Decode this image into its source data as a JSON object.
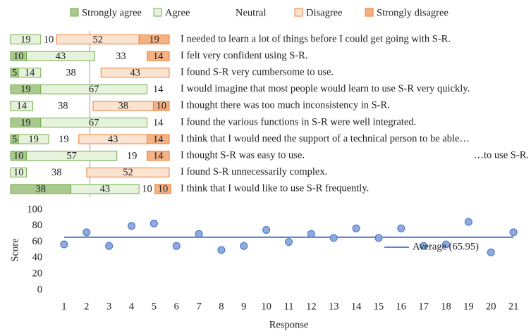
{
  "chart_data": [
    {
      "type": "bar",
      "stacked": true,
      "orientation": "horizontal",
      "xlim": [
        0,
        100
      ],
      "categories": [
        "I needed to learn a lot of things before I could get going with S-R.",
        "I felt very confident using S-R.",
        "I found S-R very cumbersome to use.",
        "I would imagine that most people would learn to use S-R very quickly.",
        "I thought there was too much inconsistency in S-R.",
        "I found the various functions in S-R were well integrated.",
        "I think that I would need the support of a technical person to be able…",
        "I thought S-R was easy to use.",
        "I found S-R unnecessarily complex.",
        "I think that I would like to use S-R frequently."
      ],
      "annotations": [
        "…to use S-R."
      ],
      "series": [
        {
          "name": "Strongly agree",
          "color": "#a9c98f",
          "stroke": "#70ad47",
          "values": [
            null,
            10,
            5,
            19,
            null,
            19,
            5,
            10,
            null,
            38
          ]
        },
        {
          "name": "Agree",
          "color": "#e6f2dc",
          "stroke": "#70ad47",
          "values": [
            19,
            43,
            14,
            67,
            14,
            67,
            19,
            57,
            10,
            43
          ]
        },
        {
          "name": "Neutral",
          "color": "none",
          "stroke": "none",
          "values": [
            10,
            33,
            38,
            14,
            38,
            14,
            19,
            19,
            38,
            10
          ]
        },
        {
          "name": "Disagree",
          "color": "#fbe3d2",
          "stroke": "#ed7d31",
          "values": [
            52,
            null,
            43,
            null,
            38,
            null,
            43,
            null,
            52,
            null
          ]
        },
        {
          "name": "Strongly disagree",
          "color": "#f4b183",
          "stroke": "#ed7d31",
          "values": [
            19,
            14,
            null,
            null,
            10,
            null,
            14,
            14,
            null,
            10
          ]
        }
      ]
    },
    {
      "type": "scatter",
      "xlabel": "Response",
      "ylabel": "Score",
      "x": [
        1,
        2,
        3,
        4,
        5,
        6,
        7,
        8,
        9,
        10,
        11,
        12,
        13,
        14,
        15,
        16,
        17,
        18,
        19,
        20,
        21
      ],
      "values": [
        57,
        72,
        55,
        80,
        83,
        55,
        70,
        50,
        55,
        75,
        60,
        70,
        65,
        77,
        65,
        77,
        55,
        57,
        85,
        47,
        72
      ],
      "color": "#8faadc",
      "stroke": "#4472c4",
      "xlim": [
        0.5,
        21.5
      ],
      "xticks": [
        1,
        2,
        3,
        4,
        5,
        6,
        7,
        8,
        9,
        10,
        11,
        12,
        13,
        14,
        15,
        16,
        17,
        18,
        19,
        20,
        21
      ],
      "ylim": [
        0,
        100
      ],
      "yticks": [
        0,
        20,
        40,
        60,
        80,
        100
      ],
      "average": {
        "name": "Average (65.95)",
        "value": 65.95,
        "color": "#4472c4"
      }
    }
  ]
}
